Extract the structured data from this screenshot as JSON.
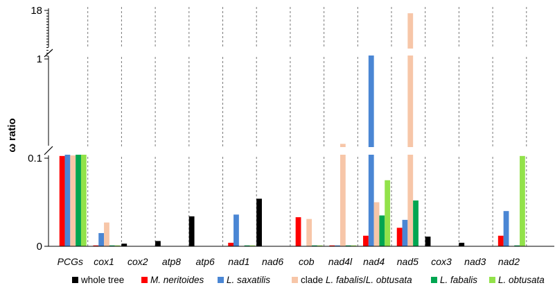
{
  "chart_data": {
    "type": "bar",
    "ylabel": "ω ratio",
    "y_axis": {
      "scale": "piecewise-broken",
      "breaks": [
        "between 0.1 and 1",
        "between 1 and 18"
      ],
      "tick_labels": [
        "0",
        "0.1",
        "1",
        "18"
      ]
    },
    "categories": [
      "PCGs",
      "cox1",
      "cox2",
      "atp8",
      "atp6",
      "nad1",
      "nad6",
      "cob",
      "nad4l",
      "nad4",
      "nad5",
      "cox3",
      "nad3",
      "nad2"
    ],
    "series": [
      {
        "name": "whole tree",
        "color": "#000000",
        "values": [
          null,
          null,
          0.003,
          0.006,
          0.034,
          null,
          0.054,
          null,
          null,
          null,
          null,
          0.011,
          0.004,
          null
        ]
      },
      {
        "name": "M. neritoides",
        "color": "#ff0000",
        "values": [
          0.12,
          0.001,
          null,
          null,
          null,
          0.004,
          null,
          0.033,
          0.001,
          0.012,
          0.021,
          null,
          null,
          0.012
        ]
      },
      {
        "name": "L. saxatilis",
        "color": "#4a86d4",
        "values": [
          0.18,
          0.015,
          null,
          null,
          null,
          0.036,
          null,
          null,
          0.001,
          4.0,
          0.03,
          null,
          null,
          0.04
        ]
      },
      {
        "name": "clade L. fabalis/L. obtusata",
        "color": "#f7c6a8",
        "values": [
          0.125,
          0.027,
          null,
          null,
          null,
          null,
          null,
          0.031,
          0.23,
          0.05,
          17.0,
          null,
          null,
          null
        ]
      },
      {
        "name": "L. fabalis",
        "color": "#00a651",
        "values": [
          0.14,
          0.001,
          null,
          null,
          null,
          0.001,
          null,
          0.001,
          0.001,
          0.035,
          0.052,
          null,
          null,
          0.001
        ]
      },
      {
        "name": "L. obtusata",
        "color": "#92e24a",
        "values": [
          0.18,
          0.001,
          null,
          null,
          null,
          0.001,
          null,
          0.001,
          0.001,
          0.075,
          null,
          null,
          null,
          0.12
        ]
      }
    ],
    "legend": {
      "position": "bottom"
    },
    "grid": "vertical-dashed-separators"
  }
}
